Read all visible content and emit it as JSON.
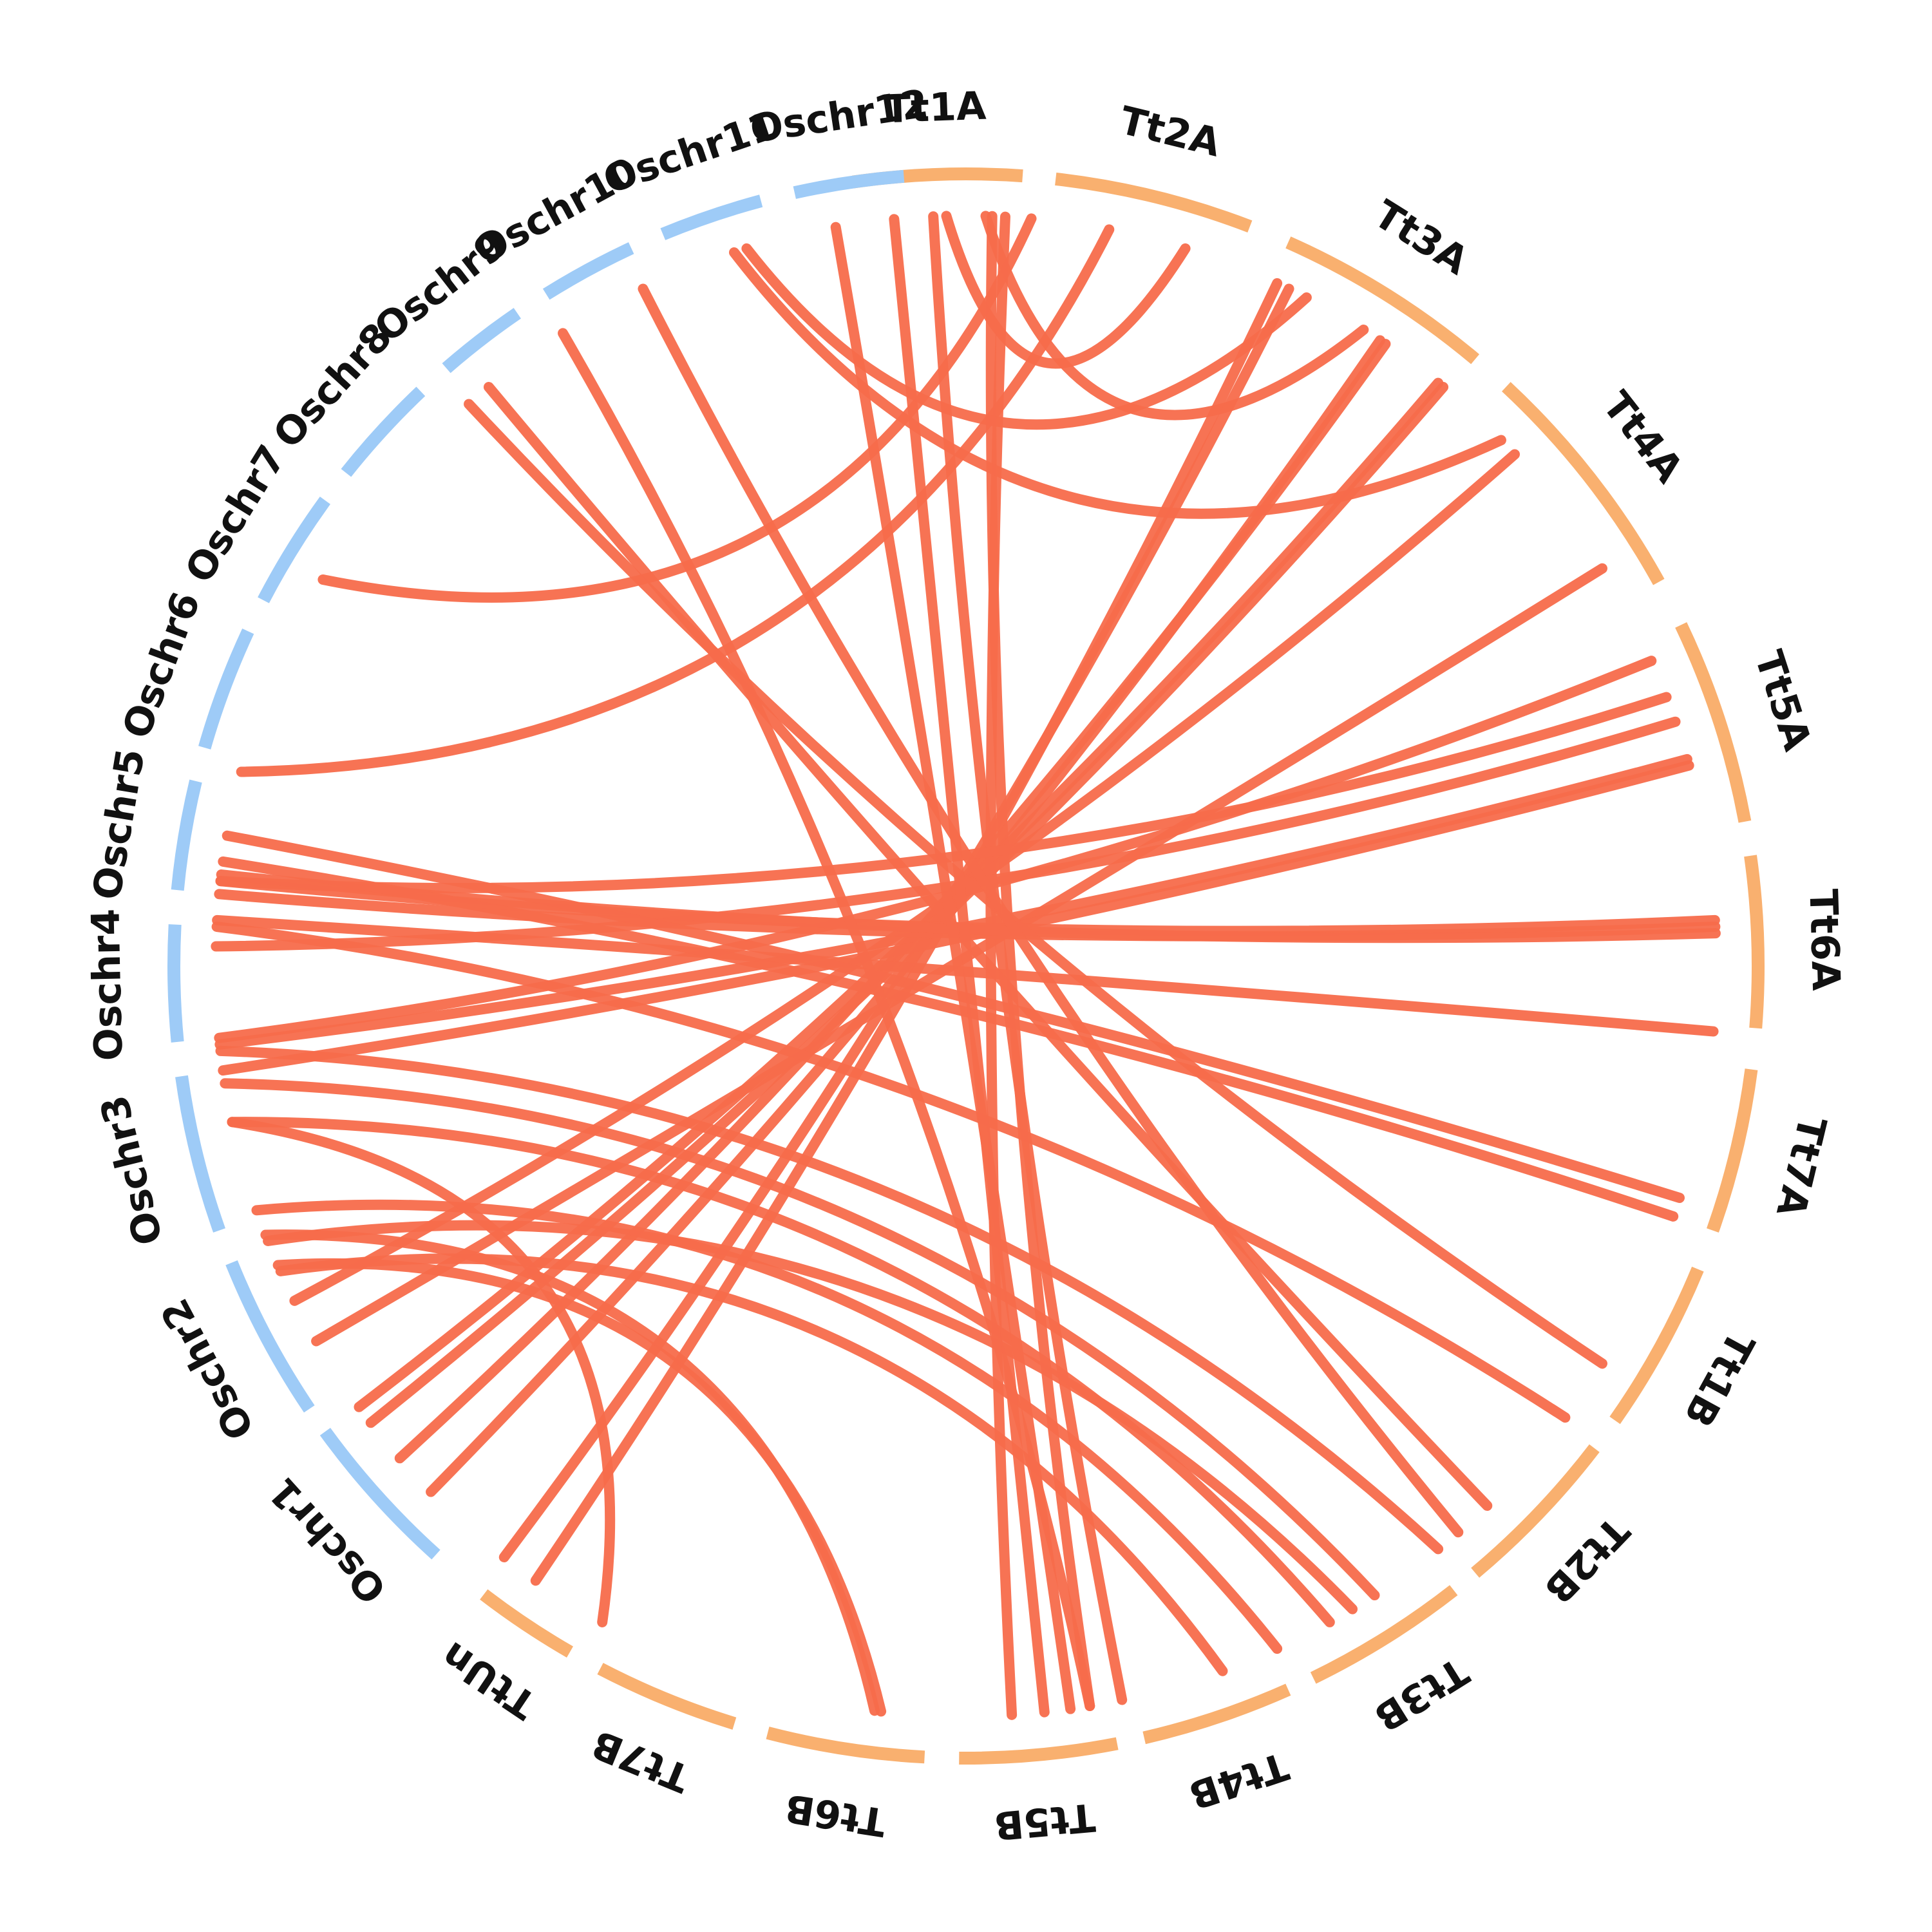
{
  "chart_data": {
    "type": "circos",
    "colors": {
      "rice": "#9ecbf7",
      "wheat": "#f9b06f",
      "link": "#f76b4b",
      "label": "#111111"
    },
    "chromosomes": [
      {
        "id": "Tt1A",
        "label": "Tt1A",
        "group": "wheat",
        "start_deg": -8.2,
        "end_deg": 4.1
      },
      {
        "id": "Tt2A",
        "label": "Tt2A",
        "group": "wheat",
        "start_deg": 6.5,
        "end_deg": 21.0
      },
      {
        "id": "Tt3A",
        "label": "Tt3A",
        "group": "wheat",
        "start_deg": 24.0,
        "end_deg": 40.0
      },
      {
        "id": "Tt4A",
        "label": "Tt4A",
        "group": "wheat",
        "start_deg": 43.0,
        "end_deg": 61.0
      },
      {
        "id": "Tt5A",
        "label": "Tt5A",
        "group": "wheat",
        "start_deg": 64.5,
        "end_deg": 79.5
      },
      {
        "id": "Tt6A",
        "label": "Tt6A",
        "group": "wheat",
        "start_deg": 82.0,
        "end_deg": 94.5
      },
      {
        "id": "Tt7A",
        "label": "Tt7A",
        "group": "wheat",
        "start_deg": 97.5,
        "end_deg": 109.5
      },
      {
        "id": "Tt1B",
        "label": "Tt1B",
        "group": "wheat",
        "start_deg": 112.5,
        "end_deg": 125.0
      },
      {
        "id": "Tt2B",
        "label": "Tt2B",
        "group": "wheat",
        "start_deg": 127.5,
        "end_deg": 140.0
      },
      {
        "id": "Tt3B",
        "label": "Tt3B",
        "group": "wheat",
        "start_deg": 142.0,
        "end_deg": 154.0
      },
      {
        "id": "Tt4B",
        "label": "Tt4B",
        "group": "wheat",
        "start_deg": 156.0,
        "end_deg": 167.0
      },
      {
        "id": "Tt5B",
        "label": "Tt5B",
        "group": "wheat",
        "start_deg": 169.0,
        "end_deg": 180.5
      },
      {
        "id": "Tt6B",
        "label": "Tt6B",
        "group": "wheat",
        "start_deg": 183.0,
        "end_deg": 194.5
      },
      {
        "id": "Tt7B",
        "label": "Tt7B",
        "group": "wheat",
        "start_deg": 197.0,
        "end_deg": 207.5
      },
      {
        "id": "TtUn",
        "label": "TtUn",
        "group": "wheat",
        "start_deg": 210.0,
        "end_deg": 217.5
      },
      {
        "id": "Oschr1",
        "label": "Oschr1",
        "group": "rice",
        "start_deg": 222.0,
        "end_deg": 234.0
      },
      {
        "id": "Oschr2",
        "label": "Oschr2",
        "group": "rice",
        "start_deg": 236.0,
        "end_deg": 248.0
      },
      {
        "id": "Oschr3",
        "label": "Oschr3",
        "group": "rice",
        "start_deg": 250.5,
        "end_deg": 262.0
      },
      {
        "id": "Oschr4",
        "label": "Oschr4",
        "group": "rice",
        "start_deg": 264.5,
        "end_deg": 273.0
      },
      {
        "id": "Oschr5",
        "label": "Oschr5",
        "group": "rice",
        "start_deg": 275.5,
        "end_deg": 283.5
      },
      {
        "id": "Oschr6",
        "label": "Oschr6",
        "group": "rice",
        "start_deg": 286.0,
        "end_deg": 295.0
      },
      {
        "id": "Oschr7",
        "label": "Oschr7",
        "group": "rice",
        "start_deg": 297.5,
        "end_deg": 306.0
      },
      {
        "id": "Oschr8",
        "label": "Oschr8",
        "group": "rice",
        "start_deg": 308.5,
        "end_deg": 316.5
      },
      {
        "id": "Oschr9",
        "label": "Oschr9",
        "group": "rice",
        "start_deg": 319.0,
        "end_deg": 325.5
      },
      {
        "id": "Oschr10",
        "label": "Oschr10",
        "group": "rice",
        "start_deg": 328.0,
        "end_deg": 335.0
      },
      {
        "id": "Oschr11",
        "label": "Oschr11",
        "group": "rice",
        "start_deg": 337.5,
        "end_deg": 345.0
      },
      {
        "id": "Oschr12",
        "label": "Oschr12",
        "group": "rice",
        "start_deg": 347.5,
        "end_deg": 355.5
      }
    ],
    "links": [
      [
        -1.5,
        17.0
      ],
      [
        1.5,
        32.0
      ],
      [
        3.0,
        176.5
      ],
      [
        -2.5,
        168.0
      ],
      [
        2.0,
        170.5
      ],
      [
        11.0,
        285.0
      ],
      [
        24.5,
        215.0
      ],
      [
        25.5,
        218.0
      ],
      [
        33.5,
        225.5
      ],
      [
        34.0,
        229.0
      ],
      [
        39.5,
        232.5
      ],
      [
        39.0,
        234.0
      ],
      [
        47.0,
        243.5
      ],
      [
        58.0,
        240.0
      ],
      [
        66.0,
        264.5
      ],
      [
        69.0,
        276.5
      ],
      [
        71.0,
        271.5
      ],
      [
        74.0,
        264.0
      ],
      [
        74.5,
        262.0
      ],
      [
        86.5,
        276.5
      ],
      [
        87.0,
        275.5
      ],
      [
        87.5,
        277.0
      ],
      [
        95.0,
        273.5
      ],
      [
        108.0,
        280.0
      ],
      [
        109.5,
        278.0
      ],
      [
        122.0,
        318.5
      ],
      [
        127.0,
        273.0
      ],
      [
        136.0,
        320.5
      ],
      [
        139.0,
        334.5
      ],
      [
        141.0,
        263.5
      ],
      [
        147.0,
        261.0
      ],
      [
        149.0,
        248.5
      ],
      [
        151.0,
        258.0
      ],
      [
        155.5,
        251.0
      ],
      [
        160.0,
        246.0
      ],
      [
        170.5,
        327.5
      ],
      [
        172.0,
        350.0
      ],
      [
        174.0,
        354.5
      ],
      [
        186.5,
        246.5
      ],
      [
        187.0,
        249.0
      ],
      [
        209.0,
        258.0
      ],
      [
        301.0,
        5.0
      ],
      [
        342.0,
        45.5
      ],
      [
        343.0,
        27.0
      ]
    ]
  }
}
